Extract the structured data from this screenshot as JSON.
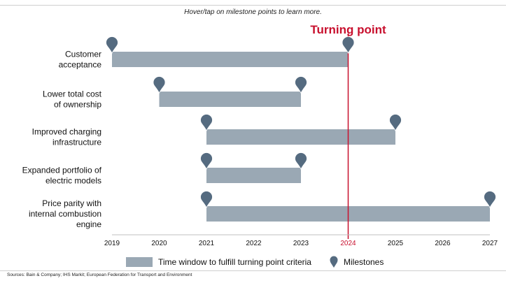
{
  "header": {
    "hint": "Hover/tap on milestone points to learn more."
  },
  "chart_data": {
    "type": "bar",
    "orientation": "horizontal-range",
    "xlim": [
      2019,
      2027
    ],
    "x_ticks": [
      "2019",
      "2020",
      "2021",
      "2022",
      "2023",
      "2024",
      "2025",
      "2026",
      "2027"
    ],
    "highlight_tick": "2024",
    "turning_point": {
      "label": "Turning point",
      "x": 2024,
      "color": "#c8102e"
    },
    "categories": [
      [
        "Customer",
        "acceptance"
      ],
      [
        "Lower total cost",
        "of ownership"
      ],
      [
        "Improved charging",
        "infrastructure"
      ],
      [
        "Expanded portfolio of",
        "electric models"
      ],
      [
        "Price parity with",
        "internal combustion",
        "engine"
      ]
    ],
    "ranges": [
      {
        "start": 2019,
        "end": 2024
      },
      {
        "start": 2020,
        "end": 2023
      },
      {
        "start": 2021,
        "end": 2025
      },
      {
        "start": 2021,
        "end": 2023
      },
      {
        "start": 2021,
        "end": 2027
      }
    ],
    "bar_color": "#9aa8b4",
    "pin_color": "#556b80",
    "legend": {
      "bar_label": "Time window to fulfill turning point criteria",
      "pin_label": "Milestones",
      "placement": "bottom"
    },
    "grid": false
  },
  "footer": {
    "source": "Sources: Bain & Company; IHS Markit; European Federation for Transport and Environment"
  }
}
